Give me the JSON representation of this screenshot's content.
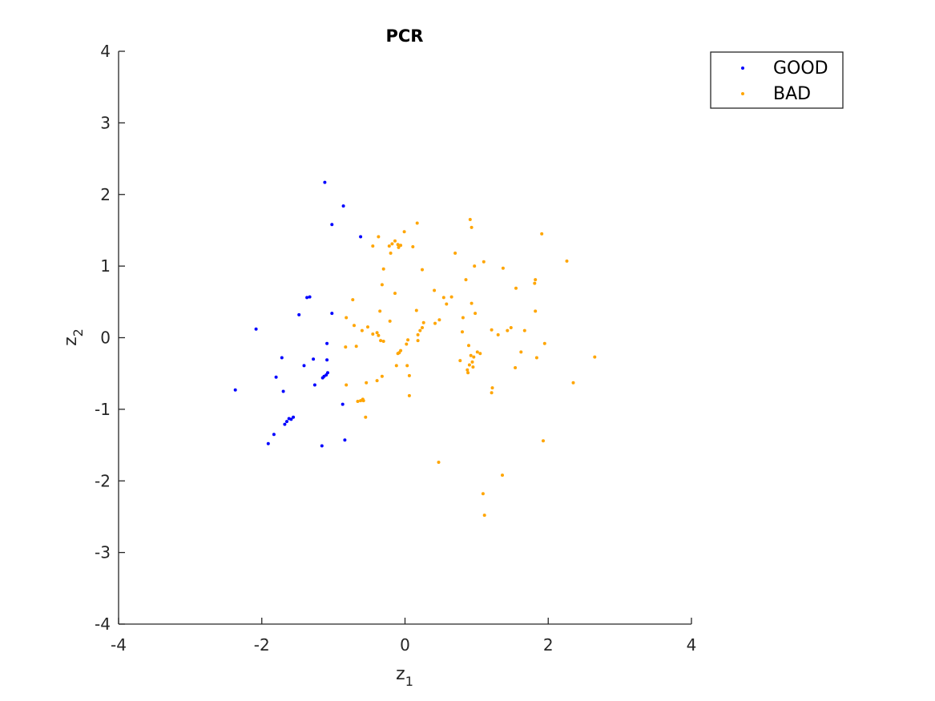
{
  "chart_data": {
    "type": "scatter",
    "title": "PCR",
    "xlabel": {
      "base": "z",
      "sub": "1"
    },
    "ylabel": {
      "base": "z",
      "sub": "2"
    },
    "xlim": [
      -4,
      4
    ],
    "ylim": [
      -4,
      4
    ],
    "xticks": [
      -4,
      -2,
      0,
      2,
      4
    ],
    "yticks": [
      -4,
      -3,
      -2,
      -1,
      0,
      1,
      2,
      3,
      4
    ],
    "grid": false,
    "legend": "top-right",
    "series": [
      {
        "name": "GOOD",
        "color": "#0000ff",
        "points": [
          [
            -1.12,
            2.17
          ],
          [
            -0.86,
            1.84
          ],
          [
            -1.02,
            1.58
          ],
          [
            -0.62,
            1.41
          ],
          [
            -1.33,
            0.57
          ],
          [
            -1.37,
            0.56
          ],
          [
            -1.48,
            0.32
          ],
          [
            -1.02,
            0.34
          ],
          [
            -2.08,
            0.12
          ],
          [
            -1.09,
            -0.08
          ],
          [
            -1.72,
            -0.28
          ],
          [
            -1.28,
            -0.3
          ],
          [
            -1.09,
            -0.31
          ],
          [
            -1.41,
            -0.39
          ],
          [
            -1.08,
            -0.49
          ],
          [
            -1.1,
            -0.52
          ],
          [
            -1.13,
            -0.54
          ],
          [
            -1.15,
            -0.56
          ],
          [
            -1.8,
            -0.55
          ],
          [
            -1.26,
            -0.66
          ],
          [
            -2.37,
            -0.73
          ],
          [
            -1.7,
            -0.75
          ],
          [
            -0.87,
            -0.93
          ],
          [
            -1.56,
            -1.11
          ],
          [
            -1.62,
            -1.13
          ],
          [
            -1.59,
            -1.14
          ],
          [
            -1.65,
            -1.17
          ],
          [
            -1.68,
            -1.21
          ],
          [
            -1.83,
            -1.35
          ],
          [
            -0.84,
            -1.43
          ],
          [
            -1.91,
            -1.48
          ],
          [
            -1.16,
            -1.51
          ]
        ]
      },
      {
        "name": "BAD",
        "color": "#ffa500",
        "points": [
          [
            0.91,
            1.65
          ],
          [
            0.17,
            1.6
          ],
          [
            0.93,
            1.54
          ],
          [
            -0.01,
            1.48
          ],
          [
            1.91,
            1.45
          ],
          [
            -0.37,
            1.41
          ],
          [
            -0.14,
            1.35
          ],
          [
            -0.1,
            1.3
          ],
          [
            -0.18,
            1.31
          ],
          [
            -0.06,
            1.29
          ],
          [
            -0.22,
            1.28
          ],
          [
            -0.45,
            1.28
          ],
          [
            0.11,
            1.27
          ],
          [
            -0.09,
            1.26
          ],
          [
            -0.2,
            1.18
          ],
          [
            0.7,
            1.18
          ],
          [
            2.26,
            1.07
          ],
          [
            1.1,
            1.06
          ],
          [
            0.97,
            1.0
          ],
          [
            1.37,
            0.97
          ],
          [
            -0.3,
            0.96
          ],
          [
            0.24,
            0.95
          ],
          [
            0.85,
            0.81
          ],
          [
            1.82,
            0.81
          ],
          [
            1.81,
            0.76
          ],
          [
            -0.32,
            0.74
          ],
          [
            1.55,
            0.69
          ],
          [
            0.41,
            0.66
          ],
          [
            -0.14,
            0.62
          ],
          [
            0.54,
            0.56
          ],
          [
            0.65,
            0.57
          ],
          [
            -0.73,
            0.53
          ],
          [
            0.58,
            0.47
          ],
          [
            0.93,
            0.48
          ],
          [
            0.16,
            0.38
          ],
          [
            -0.35,
            0.37
          ],
          [
            1.82,
            0.37
          ],
          [
            0.98,
            0.34
          ],
          [
            -0.82,
            0.28
          ],
          [
            0.81,
            0.28
          ],
          [
            0.48,
            0.25
          ],
          [
            0.26,
            0.21
          ],
          [
            -0.21,
            0.23
          ],
          [
            0.42,
            0.2
          ],
          [
            -0.71,
            0.17
          ],
          [
            -0.52,
            0.15
          ],
          [
            1.48,
            0.14
          ],
          [
            0.24,
            0.14
          ],
          [
            1.21,
            0.11
          ],
          [
            -0.6,
            0.1
          ],
          [
            1.67,
            0.1
          ],
          [
            1.43,
            0.1
          ],
          [
            0.21,
            0.1
          ],
          [
            0.8,
            0.08
          ],
          [
            -0.39,
            0.07
          ],
          [
            -0.45,
            0.05
          ],
          [
            0.18,
            0.04
          ],
          [
            -0.37,
            0.03
          ],
          [
            1.3,
            0.04
          ],
          [
            -0.34,
            -0.04
          ],
          [
            -0.3,
            -0.05
          ],
          [
            0.18,
            -0.04
          ],
          [
            0.04,
            -0.03
          ],
          [
            1.95,
            -0.08
          ],
          [
            0.02,
            -0.09
          ],
          [
            0.89,
            -0.11
          ],
          [
            -0.68,
            -0.12
          ],
          [
            -0.83,
            -0.13
          ],
          [
            -0.06,
            -0.18
          ],
          [
            1.01,
            -0.2
          ],
          [
            1.62,
            -0.2
          ],
          [
            -0.08,
            -0.21
          ],
          [
            -0.1,
            -0.22
          ],
          [
            0.92,
            -0.25
          ],
          [
            0.96,
            -0.27
          ],
          [
            1.05,
            -0.22
          ],
          [
            2.65,
            -0.27
          ],
          [
            1.84,
            -0.28
          ],
          [
            0.77,
            -0.32
          ],
          [
            0.94,
            -0.34
          ],
          [
            0.9,
            -0.38
          ],
          [
            -0.12,
            -0.39
          ],
          [
            0.03,
            -0.39
          ],
          [
            0.95,
            -0.41
          ],
          [
            1.54,
            -0.42
          ],
          [
            0.87,
            -0.45
          ],
          [
            0.88,
            -0.49
          ],
          [
            -0.32,
            -0.54
          ],
          [
            0.06,
            -0.53
          ],
          [
            -0.39,
            -0.6
          ],
          [
            -0.54,
            -0.63
          ],
          [
            -0.82,
            -0.66
          ],
          [
            2.35,
            -0.63
          ],
          [
            1.22,
            -0.7
          ],
          [
            1.21,
            -0.77
          ],
          [
            0.06,
            -0.81
          ],
          [
            -0.59,
            -0.86
          ],
          [
            -0.62,
            -0.88
          ],
          [
            -0.66,
            -0.89
          ],
          [
            -0.58,
            -0.88
          ],
          [
            -0.55,
            -1.11
          ],
          [
            1.93,
            -1.44
          ],
          [
            0.47,
            -1.74
          ],
          [
            1.36,
            -1.92
          ],
          [
            1.09,
            -2.18
          ],
          [
            1.11,
            -2.48
          ]
        ]
      }
    ]
  }
}
